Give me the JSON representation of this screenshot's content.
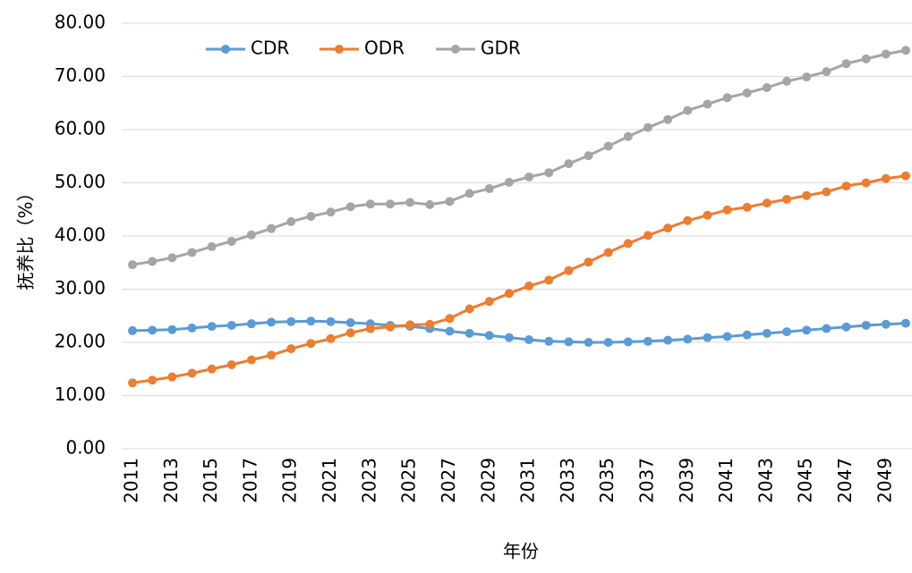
{
  "chart_data": {
    "type": "line",
    "y_label": "抚养比（%）",
    "x_label": "年份",
    "x": [
      2011,
      2012,
      2013,
      2014,
      2015,
      2016,
      2017,
      2018,
      2019,
      2020,
      2021,
      2022,
      2023,
      2024,
      2025,
      2026,
      2027,
      2028,
      2029,
      2030,
      2031,
      2032,
      2033,
      2034,
      2035,
      2036,
      2037,
      2038,
      2039,
      2040,
      2041,
      2042,
      2043,
      2044,
      2045,
      2046,
      2047,
      2048,
      2049,
      2050
    ],
    "xlim": [
      2011,
      2050
    ],
    "xticks": [
      2011,
      2013,
      2015,
      2017,
      2019,
      2021,
      2023,
      2025,
      2027,
      2029,
      2031,
      2033,
      2035,
      2037,
      2039,
      2041,
      2043,
      2045,
      2047,
      2049
    ],
    "ylim": [
      0,
      80
    ],
    "yticks": [
      {
        "value": 0,
        "label": "0.00"
      },
      {
        "value": 10,
        "label": "10.00"
      },
      {
        "value": 20,
        "label": "20.00"
      },
      {
        "value": 30,
        "label": "30.00"
      },
      {
        "value": 40,
        "label": "40.00"
      },
      {
        "value": 50,
        "label": "50.00"
      },
      {
        "value": 60,
        "label": "60.00"
      },
      {
        "value": 70,
        "label": "70.00"
      },
      {
        "value": 80,
        "label": "80.00"
      }
    ],
    "grid": true,
    "legend": "top-left",
    "series": [
      {
        "name": "CDR",
        "color": "#5b9bd5",
        "values": [
          22.2,
          22.3,
          22.4,
          22.7,
          23.0,
          23.2,
          23.5,
          23.8,
          23.9,
          24.0,
          23.9,
          23.7,
          23.5,
          23.2,
          23.0,
          22.6,
          22.1,
          21.7,
          21.3,
          20.9,
          20.5,
          20.2,
          20.1,
          20.0,
          20.0,
          20.1,
          20.2,
          20.4,
          20.6,
          20.9,
          21.1,
          21.4,
          21.7,
          22.0,
          22.3,
          22.6,
          22.9,
          23.2,
          23.4,
          23.6
        ]
      },
      {
        "name": "ODR",
        "color": "#ed7d31",
        "values": [
          12.4,
          12.9,
          13.5,
          14.2,
          15.0,
          15.8,
          16.7,
          17.6,
          18.8,
          19.8,
          20.7,
          21.8,
          22.6,
          22.9,
          23.3,
          23.4,
          24.5,
          26.3,
          27.7,
          29.2,
          30.6,
          31.7,
          33.5,
          35.1,
          36.9,
          38.6,
          40.1,
          41.5,
          42.9,
          43.9,
          44.9,
          45.4,
          46.2,
          46.9,
          47.6,
          48.3,
          49.4,
          50.0,
          50.8,
          51.3
        ]
      },
      {
        "name": "GDR",
        "color": "#a5a5a5",
        "values": [
          34.6,
          35.2,
          35.9,
          36.9,
          38.0,
          39.0,
          40.2,
          41.4,
          42.7,
          43.7,
          44.5,
          45.5,
          46.0,
          46.0,
          46.3,
          45.9,
          46.5,
          48.0,
          48.9,
          50.1,
          51.1,
          51.9,
          53.6,
          55.1,
          56.9,
          58.7,
          60.4,
          61.9,
          63.6,
          64.8,
          66.0,
          66.9,
          67.9,
          69.1,
          69.9,
          70.9,
          72.4,
          73.3,
          74.2,
          74.9
        ]
      }
    ]
  }
}
